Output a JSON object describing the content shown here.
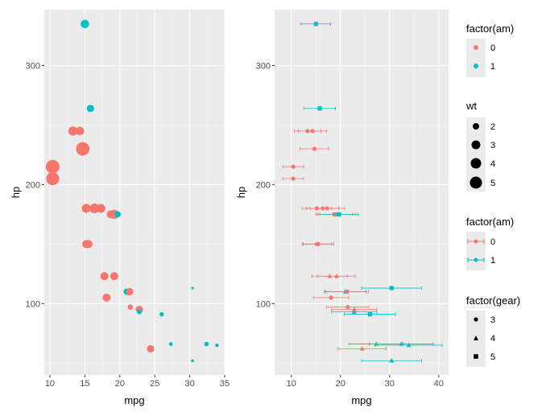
{
  "chart_data": [
    {
      "type": "scatter",
      "xlabel": "mpg",
      "ylabel": "hp",
      "xlim": [
        9.2,
        35
      ],
      "ylim": [
        40,
        347
      ],
      "x_ticks": [
        10,
        15,
        20,
        25,
        30,
        35
      ],
      "y_ticks": [
        100,
        200,
        300
      ],
      "color_by": "factor(am)",
      "size_by": "wt",
      "points": [
        {
          "mpg": 15.0,
          "hp": 335,
          "am": 1,
          "wt": 3.57
        },
        {
          "mpg": 15.8,
          "hp": 264,
          "am": 1,
          "wt": 3.17
        },
        {
          "mpg": 13.3,
          "hp": 245,
          "am": 0,
          "wt": 3.84
        },
        {
          "mpg": 14.3,
          "hp": 245,
          "am": 0,
          "wt": 3.57
        },
        {
          "mpg": 14.7,
          "hp": 230,
          "am": 0,
          "wt": 5.35
        },
        {
          "mpg": 10.4,
          "hp": 215,
          "am": 0,
          "wt": 5.42
        },
        {
          "mpg": 10.4,
          "hp": 205,
          "am": 0,
          "wt": 5.25
        },
        {
          "mpg": 15.2,
          "hp": 180,
          "am": 0,
          "wt": 3.78
        },
        {
          "mpg": 16.4,
          "hp": 180,
          "am": 0,
          "wt": 4.07
        },
        {
          "mpg": 17.3,
          "hp": 180,
          "am": 0,
          "wt": 3.73
        },
        {
          "mpg": 18.7,
          "hp": 175,
          "am": 0,
          "wt": 3.44
        },
        {
          "mpg": 19.2,
          "hp": 175,
          "am": 0,
          "wt": 3.85
        },
        {
          "mpg": 19.7,
          "hp": 175,
          "am": 1,
          "wt": 2.77
        },
        {
          "mpg": 15.5,
          "hp": 150,
          "am": 0,
          "wt": 3.52
        },
        {
          "mpg": 15.2,
          "hp": 150,
          "am": 0,
          "wt": 3.44
        },
        {
          "mpg": 17.8,
          "hp": 123,
          "am": 0,
          "wt": 3.44
        },
        {
          "mpg": 19.2,
          "hp": 123,
          "am": 0,
          "wt": 3.44
        },
        {
          "mpg": 18.1,
          "hp": 105,
          "am": 0,
          "wt": 3.46
        },
        {
          "mpg": 21.0,
          "hp": 110,
          "am": 1,
          "wt": 2.62
        },
        {
          "mpg": 21.0,
          "hp": 110,
          "am": 1,
          "wt": 2.875
        },
        {
          "mpg": 21.4,
          "hp": 110,
          "am": 0,
          "wt": 3.215
        },
        {
          "mpg": 21.5,
          "hp": 97,
          "am": 0,
          "wt": 2.465
        },
        {
          "mpg": 22.8,
          "hp": 95,
          "am": 0,
          "wt": 3.19
        },
        {
          "mpg": 22.8,
          "hp": 93,
          "am": 1,
          "wt": 2.32
        },
        {
          "mpg": 26.0,
          "hp": 91,
          "am": 1,
          "wt": 2.14
        },
        {
          "mpg": 24.4,
          "hp": 62,
          "am": 0,
          "wt": 3.19
        },
        {
          "mpg": 27.3,
          "hp": 66,
          "am": 1,
          "wt": 1.935
        },
        {
          "mpg": 32.4,
          "hp": 66,
          "am": 1,
          "wt": 2.2
        },
        {
          "mpg": 33.9,
          "hp": 65,
          "am": 1,
          "wt": 1.835
        },
        {
          "mpg": 30.4,
          "hp": 52,
          "am": 1,
          "wt": 1.615
        },
        {
          "mpg": 30.4,
          "hp": 113,
          "am": 1,
          "wt": 1.513
        }
      ]
    },
    {
      "type": "scatter",
      "xlabel": "mpg",
      "ylabel": "hp",
      "xlim": [
        6.6,
        42
      ],
      "ylim": [
        40,
        347
      ],
      "x_ticks": [
        10,
        20,
        30,
        40
      ],
      "y_ticks": [
        100,
        200,
        300
      ],
      "color_by": "factor(am)",
      "shape_by": "factor(gear)",
      "error_bars": "horizontal",
      "points": [
        {
          "mpg": 15.0,
          "hp": 335,
          "am": 1,
          "gear": 5,
          "xmin": 12.0,
          "xmax": 18.0
        },
        {
          "mpg": 15.8,
          "hp": 264,
          "am": 1,
          "gear": 5,
          "xmin": 12.6,
          "xmax": 19.0
        },
        {
          "mpg": 13.3,
          "hp": 245,
          "am": 0,
          "gear": 3,
          "xmin": 10.6,
          "xmax": 16.0
        },
        {
          "mpg": 14.3,
          "hp": 245,
          "am": 0,
          "gear": 3,
          "xmin": 11.4,
          "xmax": 17.2
        },
        {
          "mpg": 14.7,
          "hp": 230,
          "am": 0,
          "gear": 3,
          "xmin": 11.8,
          "xmax": 17.6
        },
        {
          "mpg": 10.4,
          "hp": 215,
          "am": 0,
          "gear": 3,
          "xmin": 8.3,
          "xmax": 12.5
        },
        {
          "mpg": 10.4,
          "hp": 205,
          "am": 0,
          "gear": 3,
          "xmin": 8.3,
          "xmax": 12.5
        },
        {
          "mpg": 15.2,
          "hp": 180,
          "am": 0,
          "gear": 3,
          "xmin": 12.2,
          "xmax": 18.2
        },
        {
          "mpg": 16.4,
          "hp": 180,
          "am": 0,
          "gear": 3,
          "xmin": 13.1,
          "xmax": 19.7
        },
        {
          "mpg": 17.3,
          "hp": 180,
          "am": 0,
          "gear": 3,
          "xmin": 13.8,
          "xmax": 20.8
        },
        {
          "mpg": 18.7,
          "hp": 175,
          "am": 0,
          "gear": 3,
          "xmin": 15.0,
          "xmax": 22.4
        },
        {
          "mpg": 19.2,
          "hp": 175,
          "am": 0,
          "gear": 3,
          "xmin": 15.4,
          "xmax": 23.0
        },
        {
          "mpg": 19.7,
          "hp": 175,
          "am": 1,
          "gear": 5,
          "xmin": 15.8,
          "xmax": 23.6
        },
        {
          "mpg": 15.2,
          "hp": 150,
          "am": 0,
          "gear": 3,
          "xmin": 12.2,
          "xmax": 18.2
        },
        {
          "mpg": 15.5,
          "hp": 150,
          "am": 0,
          "gear": 3,
          "xmin": 12.4,
          "xmax": 18.6
        },
        {
          "mpg": 17.8,
          "hp": 123,
          "am": 0,
          "gear": 4,
          "xmin": 14.2,
          "xmax": 21.4
        },
        {
          "mpg": 19.2,
          "hp": 123,
          "am": 0,
          "gear": 4,
          "xmin": 15.4,
          "xmax": 23.0
        },
        {
          "mpg": 18.1,
          "hp": 105,
          "am": 0,
          "gear": 3,
          "xmin": 14.5,
          "xmax": 21.7
        },
        {
          "mpg": 21.0,
          "hp": 110,
          "am": 1,
          "gear": 4,
          "xmin": 16.8,
          "xmax": 25.2
        },
        {
          "mpg": 21.0,
          "hp": 110,
          "am": 1,
          "gear": 4,
          "xmin": 16.8,
          "xmax": 25.2
        },
        {
          "mpg": 21.4,
          "hp": 110,
          "am": 0,
          "gear": 3,
          "xmin": 17.1,
          "xmax": 25.7
        },
        {
          "mpg": 30.4,
          "hp": 113,
          "am": 1,
          "gear": 5,
          "xmin": 24.3,
          "xmax": 36.5
        },
        {
          "mpg": 21.5,
          "hp": 97,
          "am": 0,
          "gear": 3,
          "xmin": 17.2,
          "xmax": 25.8
        },
        {
          "mpg": 22.8,
          "hp": 95,
          "am": 0,
          "gear": 4,
          "xmin": 18.2,
          "xmax": 27.4
        },
        {
          "mpg": 22.8,
          "hp": 93,
          "am": 1,
          "gear": 4,
          "xmin": 18.2,
          "xmax": 27.4
        },
        {
          "mpg": 26.0,
          "hp": 91,
          "am": 1,
          "gear": 5,
          "xmin": 20.8,
          "xmax": 31.2
        },
        {
          "mpg": 27.3,
          "hp": 66,
          "am": 1,
          "gear": 4,
          "xmin": 21.8,
          "xmax": 32.8
        },
        {
          "mpg": 32.4,
          "hp": 66,
          "am": 1,
          "gear": 4,
          "xmin": 25.9,
          "xmax": 38.9
        },
        {
          "mpg": 33.9,
          "hp": 65,
          "am": 1,
          "gear": 4,
          "xmin": 27.1,
          "xmax": 40.7
        },
        {
          "mpg": 24.4,
          "hp": 62,
          "am": 0,
          "gear": 4,
          "xmin": 19.5,
          "xmax": 29.3
        },
        {
          "mpg": 30.4,
          "hp": 52,
          "am": 1,
          "gear": 4,
          "xmin": 24.3,
          "xmax": 36.5
        }
      ]
    }
  ],
  "legend": {
    "am_title_1": "factor(am)",
    "wt_title": "wt",
    "am_title_2": "factor(am)",
    "gear_title": "factor(gear)",
    "am_levels": [
      "0",
      "1"
    ],
    "wt_levels": [
      "2",
      "3",
      "4",
      "5"
    ],
    "gear_levels": [
      "3",
      "4",
      "5"
    ]
  },
  "colors": {
    "am_0": "#F8766D",
    "am_1": "#00BFC4",
    "panel_bg": "#EBEBEB",
    "grid_major": "#FFFFFF",
    "grid_minor": "#F5F5F5"
  }
}
